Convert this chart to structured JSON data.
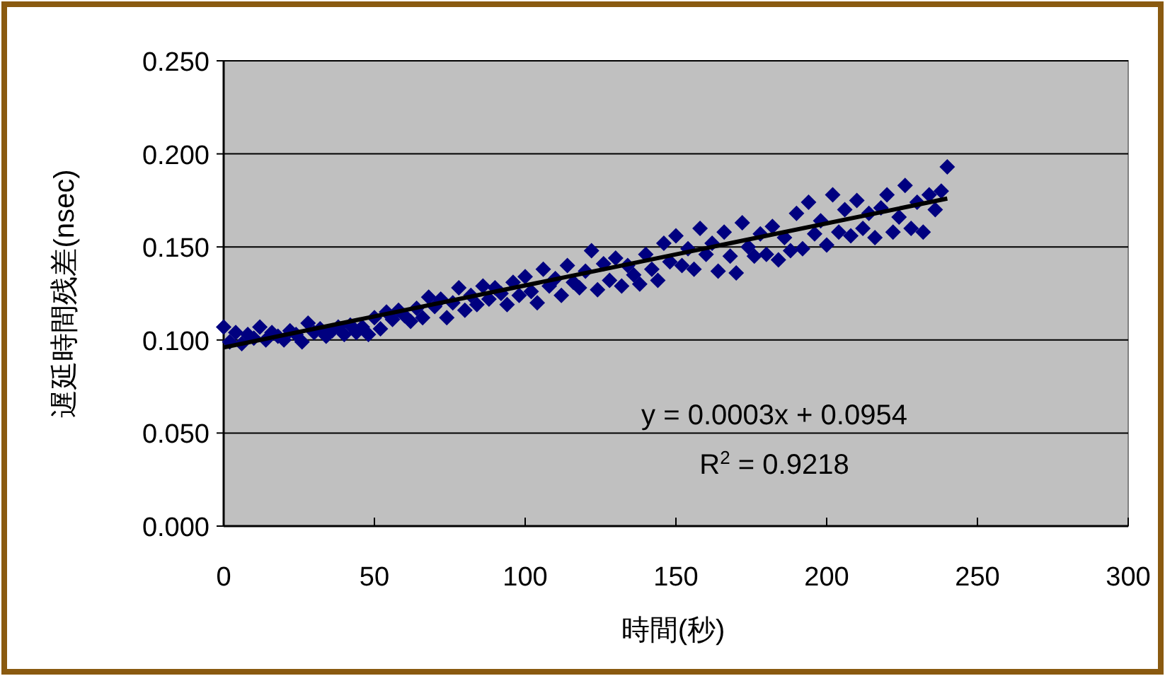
{
  "chart_data": {
    "type": "scatter",
    "xlabel": "時間(秒)",
    "ylabel": "遅延時間残差(nsec)",
    "xlim": [
      0,
      300
    ],
    "xticks": [
      0,
      50,
      100,
      150,
      200,
      250,
      300
    ],
    "ylim": [
      0,
      0.25
    ],
    "yticks": [
      {
        "value": 0,
        "label": "0.000"
      },
      {
        "value": 0.05,
        "label": "0.050"
      },
      {
        "value": 0.1,
        "label": "0.100"
      },
      {
        "value": 0.15,
        "label": "0.150"
      },
      {
        "value": 0.2,
        "label": "0.200"
      },
      {
        "value": 0.25,
        "label": "0.250"
      }
    ],
    "grid": "y",
    "annotations": [
      "y = 0.0003x + 0.0954",
      "R$^{2}$ = 0.9218"
    ],
    "series": [
      {
        "type": "scatter",
        "marker": "diamond",
        "color": "#000080",
        "x": [
          0,
          2,
          4,
          6,
          8,
          10,
          12,
          14,
          16,
          18,
          20,
          22,
          24,
          26,
          28,
          30,
          32,
          34,
          36,
          38,
          40,
          42,
          44,
          46,
          48,
          50,
          52,
          54,
          56,
          58,
          60,
          62,
          64,
          66,
          68,
          70,
          72,
          74,
          76,
          78,
          80,
          82,
          84,
          86,
          88,
          90,
          92,
          94,
          96,
          98,
          100,
          102,
          104,
          106,
          108,
          110,
          112,
          114,
          116,
          118,
          120,
          122,
          124,
          126,
          128,
          130,
          132,
          134,
          136,
          138,
          140,
          142,
          144,
          146,
          148,
          150,
          152,
          154,
          156,
          158,
          160,
          162,
          164,
          166,
          168,
          170,
          172,
          174,
          176,
          178,
          180,
          182,
          184,
          186,
          188,
          190,
          192,
          194,
          196,
          198,
          200,
          202,
          204,
          206,
          208,
          210,
          212,
          214,
          216,
          218,
          220,
          222,
          224,
          226,
          228,
          230,
          232,
          234,
          236,
          238,
          240
        ],
        "values": [
          0.107,
          0.099,
          0.104,
          0.098,
          0.103,
          0.101,
          0.107,
          0.1,
          0.104,
          0.102,
          0.1,
          0.105,
          0.103,
          0.099,
          0.109,
          0.104,
          0.106,
          0.102,
          0.105,
          0.107,
          0.103,
          0.108,
          0.104,
          0.107,
          0.103,
          0.112,
          0.106,
          0.115,
          0.111,
          0.116,
          0.113,
          0.11,
          0.117,
          0.112,
          0.123,
          0.118,
          0.122,
          0.112,
          0.12,
          0.128,
          0.116,
          0.124,
          0.119,
          0.129,
          0.122,
          0.128,
          0.125,
          0.119,
          0.131,
          0.124,
          0.134,
          0.126,
          0.12,
          0.138,
          0.129,
          0.133,
          0.124,
          0.14,
          0.131,
          0.128,
          0.137,
          0.148,
          0.127,
          0.141,
          0.132,
          0.144,
          0.129,
          0.14,
          0.135,
          0.13,
          0.146,
          0.138,
          0.132,
          0.152,
          0.142,
          0.156,
          0.14,
          0.149,
          0.138,
          0.16,
          0.146,
          0.152,
          0.137,
          0.158,
          0.145,
          0.136,
          0.163,
          0.15,
          0.145,
          0.157,
          0.146,
          0.161,
          0.143,
          0.155,
          0.148,
          0.168,
          0.149,
          0.174,
          0.157,
          0.164,
          0.151,
          0.178,
          0.158,
          0.17,
          0.156,
          0.175,
          0.16,
          0.168,
          0.155,
          0.171,
          0.178,
          0.158,
          0.166,
          0.183,
          0.16,
          0.174,
          0.158,
          0.178,
          0.17,
          0.18,
          0.193
        ]
      },
      {
        "type": "line",
        "color": "#000000",
        "x": [
          0,
          240
        ],
        "values": [
          0.096,
          0.176
        ]
      }
    ]
  }
}
